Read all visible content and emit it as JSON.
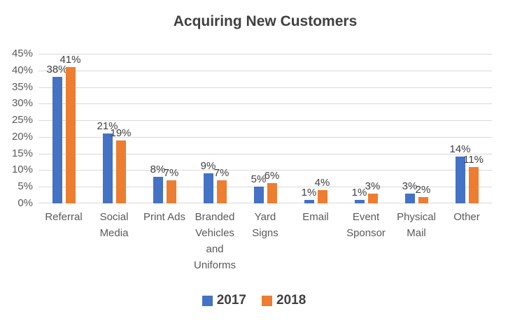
{
  "chart_data": {
    "type": "bar",
    "title": "Acquiring New Customers",
    "categories": [
      "Referral",
      "Social Media",
      "Print Ads",
      "Branded Vehicles and Uniforms",
      "Yard Signs",
      "Email",
      "Event Sponsor",
      "Physical Mail",
      "Other"
    ],
    "category_lines": [
      [
        "Referral"
      ],
      [
        "Social",
        "Media"
      ],
      [
        "Print Ads"
      ],
      [
        "Branded",
        "Vehicles",
        "and",
        "Uniforms"
      ],
      [
        "Yard",
        "Signs"
      ],
      [
        "Email"
      ],
      [
        "Event",
        "Sponsor"
      ],
      [
        "Physical",
        "Mail"
      ],
      [
        "Other"
      ]
    ],
    "series": [
      {
        "name": "2017",
        "color": "#4472C4",
        "values": [
          38,
          21,
          8,
          9,
          5,
          1,
          1,
          3,
          14
        ]
      },
      {
        "name": "2018",
        "color": "#ED7D31",
        "values": [
          41,
          19,
          7,
          7,
          6,
          4,
          3,
          2,
          11
        ]
      }
    ],
    "data_label_suffix": "%",
    "xlabel": "",
    "ylabel": "",
    "ylim": [
      0,
      45
    ],
    "ytick_step": 5,
    "ytick_labels": [
      "0%",
      "5%",
      "10%",
      "15%",
      "20%",
      "25%",
      "30%",
      "35%",
      "40%",
      "45%"
    ],
    "grid": true,
    "legend_position": "bottom",
    "colors": {
      "background": "#FFFFFF",
      "gridline": "#D9D9D9",
      "title_text": "#404040",
      "axis_text": "#595959",
      "data_label_text": "#404040",
      "legend_text": "#404040"
    }
  }
}
